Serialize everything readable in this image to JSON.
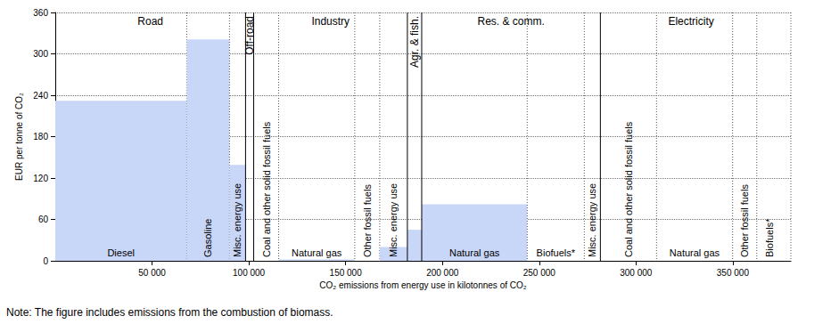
{
  "chart_data": {
    "type": "bar",
    "xlabel": "CO₂ emissions from energy use in kilotonnes of CO₂",
    "ylabel": "EUR per tonne of CO₂",
    "note": "Note: The figure includes emissions from the combustion of biomass.",
    "color": "#c8d6f8",
    "xlim": [
      0,
      380000
    ],
    "xticks": [
      {
        "value": 50000,
        "label": "50 000"
      },
      {
        "value": 100000,
        "label": "100 000"
      },
      {
        "value": 150000,
        "label": "150 000"
      },
      {
        "value": 200000,
        "label": "200 000"
      },
      {
        "value": 250000,
        "label": "250 000"
      },
      {
        "value": 300000,
        "label": "300 000"
      },
      {
        "value": 350000,
        "label": "350 000"
      }
    ],
    "ylim": [
      0,
      360
    ],
    "yticks": [
      0,
      60,
      120,
      180,
      240,
      300,
      360
    ],
    "grid": true,
    "sectors": [
      {
        "name": "Road",
        "segments": [
          {
            "label": "Diesel",
            "emissions": 67900,
            "value": 232
          },
          {
            "label": "Gasoline",
            "emissions": 22100,
            "value": 321
          },
          {
            "label": "Misc. energy use",
            "emissions": 8300,
            "value": 139
          }
        ]
      },
      {
        "name": "Off-road",
        "segments": [
          {
            "label": null,
            "emissions": 4200,
            "value": 0
          }
        ]
      },
      {
        "name": "Industry",
        "segments": [
          {
            "label": "Coal and other solid fossil fuels",
            "emissions": 12900,
            "value": 0
          },
          {
            "label": "Natural gas",
            "emissions": 39300,
            "value": 2
          },
          {
            "label": "Other fossil fuels",
            "emissions": 12900,
            "value": 0
          },
          {
            "label": "Misc. energy use",
            "emissions": 14300,
            "value": 20
          }
        ]
      },
      {
        "name": "Agr. & fish.",
        "segments": [
          {
            "label": null,
            "emissions": 7400,
            "value": 45
          }
        ]
      },
      {
        "name": "Res. & comm.",
        "segments": [
          {
            "label": "Natural gas",
            "emissions": 54500,
            "value": 82
          },
          {
            "label": "Biofuels*",
            "emissions": 29500,
            "value": 0
          },
          {
            "label": "Misc. energy use",
            "emissions": 8300,
            "value": 0
          }
        ]
      },
      {
        "name": "Electricity",
        "segments": [
          {
            "label": "Coal and other solid fossil fuels",
            "emissions": 29000,
            "value": 0
          },
          {
            "label": "Natural gas",
            "emissions": 39300,
            "value": 0
          },
          {
            "label": "Other fossil fuels",
            "emissions": 12500,
            "value": 0
          },
          {
            "label": "Biofuels*",
            "emissions": 12900,
            "value": 0
          }
        ]
      }
    ]
  }
}
